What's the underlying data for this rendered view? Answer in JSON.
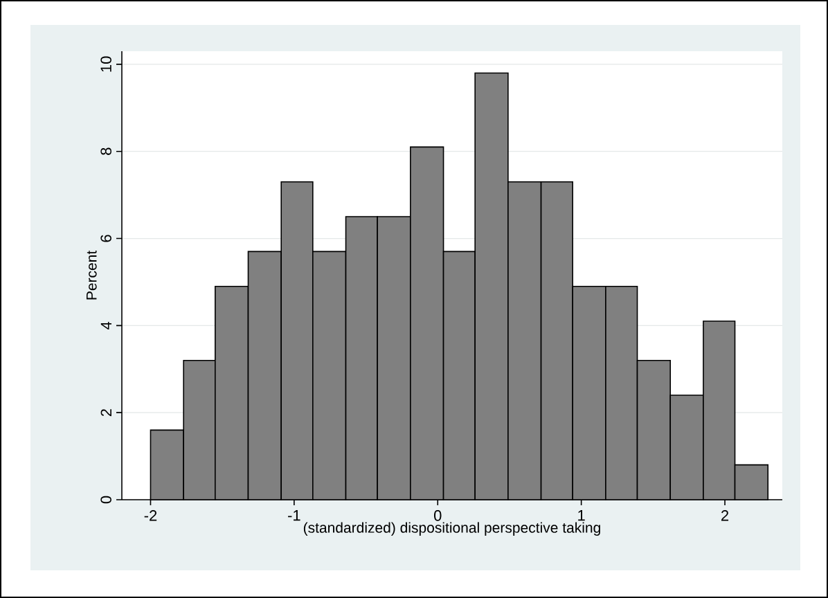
{
  "chart_data": {
    "type": "histogram",
    "xlabel": "(standardized) dispositional perspective taking",
    "ylabel": "Percent",
    "bins": [
      -2,
      -1.77,
      -1.55,
      -1.32,
      -1.09,
      -0.87,
      -0.64,
      -0.42,
      -0.19,
      0.04,
      0.26,
      0.49,
      0.72,
      0.94,
      1.17,
      1.39,
      1.62,
      1.85,
      2.07,
      2.3
    ],
    "values": [
      1.6,
      3.2,
      4.9,
      5.7,
      7.3,
      5.7,
      6.5,
      6.5,
      8.1,
      5.7,
      9.8,
      7.3,
      7.3,
      4.9,
      4.9,
      3.2,
      2.4,
      4.1,
      0.8
    ],
    "color": "#808080",
    "xlim": [
      -2.2,
      2.4
    ],
    "ylim": [
      0,
      10.3
    ],
    "xticks": [
      -2,
      -1,
      0,
      1,
      2
    ],
    "yticks": [
      0,
      2,
      4,
      6,
      8,
      10
    ],
    "grid": "y"
  }
}
